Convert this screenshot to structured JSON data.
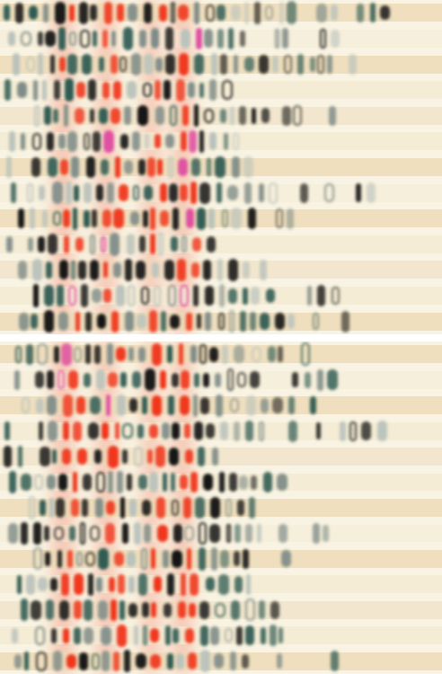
{
  "image": {
    "panels": [
      {
        "id": "top",
        "rows": 13
      },
      {
        "id": "bottom",
        "rows": 13
      }
    ],
    "colors": {
      "background": "#f8f3e2",
      "stripe_tan": "#ecd9b5",
      "stripe_pale": "#f3ead2",
      "divider": "#ffffff",
      "red": "#f0361c",
      "black": "#151515",
      "teal": "#2e5a52",
      "grey": "#7f8c88",
      "pale": "#b9c2bc",
      "pink": "#e04aa0"
    }
  }
}
